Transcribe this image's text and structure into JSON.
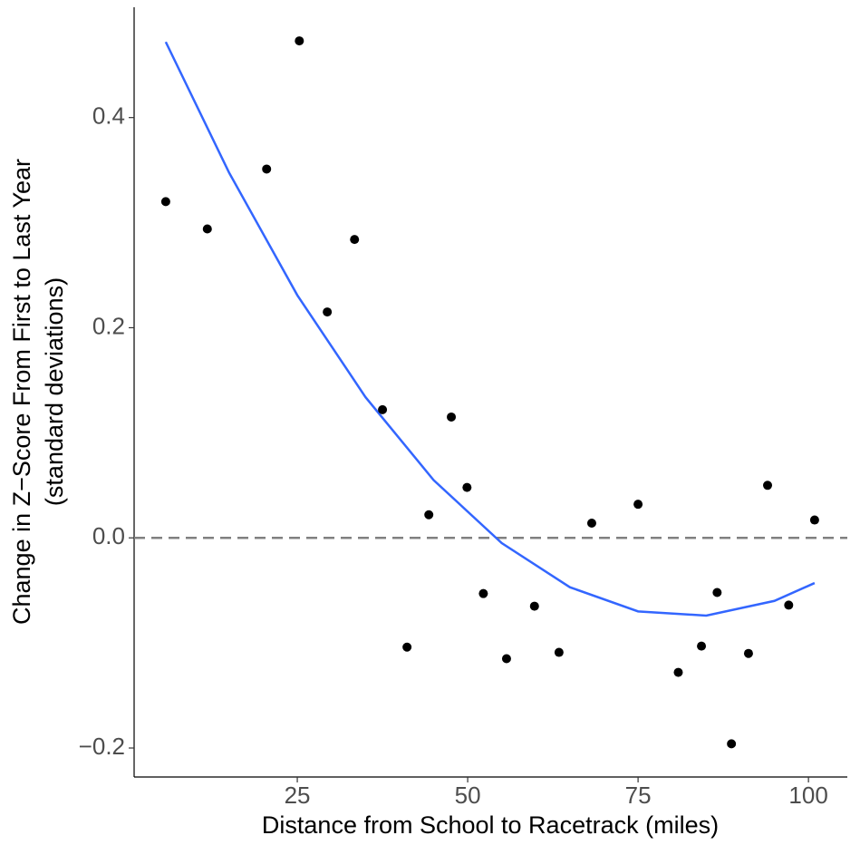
{
  "chart_data": {
    "type": "scatter",
    "x_label": "Distance from School to Racetrack (miles)",
    "y_label": [
      "Change in Z−Score From First to Last Year",
      "(standard deviations)"
    ],
    "x": [
      5.7,
      11.8,
      20.5,
      25.3,
      29.4,
      33.4,
      37.5,
      41.1,
      44.3,
      47.6,
      49.9,
      52.3,
      55.7,
      59.8,
      63.4,
      68.2,
      75.0,
      80.9,
      84.3,
      86.6,
      88.7,
      91.2,
      94.0,
      97.1,
      100.9
    ],
    "values": [
      0.32,
      0.294,
      0.351,
      0.473,
      0.215,
      0.284,
      0.122,
      -0.104,
      0.022,
      0.115,
      0.048,
      -0.053,
      -0.115,
      -0.065,
      -0.109,
      0.014,
      0.032,
      -0.128,
      -0.103,
      -0.052,
      -0.196,
      -0.11,
      0.05,
      -0.064,
      0.017
    ],
    "color": "#000000",
    "fit": {
      "x": [
        5.7,
        15,
        25,
        35,
        45,
        55,
        65,
        75,
        85,
        95,
        100.9
      ],
      "values": [
        0.472,
        0.3475,
        0.231,
        0.134,
        0.055,
        -0.005,
        -0.047,
        -0.07,
        -0.074,
        -0.06,
        -0.043
      ],
      "color": "#3366ff"
    },
    "hline": {
      "value": 0,
      "color": "#808080"
    },
    "xlim": [
      1.06,
      105.7
    ],
    "xticks": [
      25,
      50,
      75,
      100
    ],
    "ylim": [
      -0.2276,
      0.505
    ],
    "yticks": [
      {
        "value": -0.2,
        "label": "−0.2"
      },
      {
        "value": 0,
        "label": "0.0"
      },
      {
        "value": 0.2,
        "label": "0.2"
      },
      {
        "value": 0.4,
        "label": "0.4"
      }
    ]
  }
}
